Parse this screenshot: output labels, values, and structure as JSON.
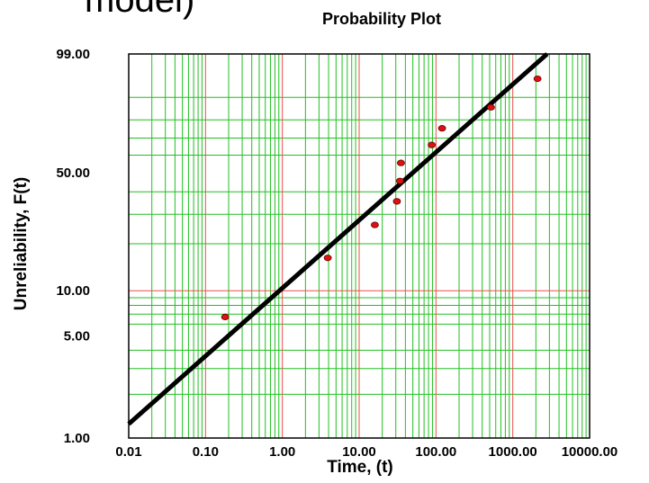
{
  "clipped_heading": "model)",
  "chart_data": {
    "type": "scatter",
    "title": "Probability Plot",
    "xlabel": "Time, (t)",
    "ylabel": "Unreliability, F(t)",
    "x_scale": "log",
    "y_scale": "weibull",
    "xlim": [
      0.01,
      10000
    ],
    "ylim": [
      1,
      99
    ],
    "grid": true,
    "x_ticks": [
      {
        "value": 0.01,
        "label": "0.01"
      },
      {
        "value": 0.1,
        "label": "0.10"
      },
      {
        "value": 1,
        "label": "1.00"
      },
      {
        "value": 10,
        "label": "10.00"
      },
      {
        "value": 100,
        "label": "100.00"
      },
      {
        "value": 1000,
        "label": "1000.00"
      },
      {
        "value": 10000,
        "label": "10000.00"
      }
    ],
    "y_ticks": [
      {
        "value": 1,
        "label": "1.00"
      },
      {
        "value": 5,
        "label": "5.00"
      },
      {
        "value": 10,
        "label": "10.00"
      },
      {
        "value": 50,
        "label": "50.00"
      },
      {
        "value": 99,
        "label": "99.00"
      }
    ],
    "y_minor": [
      2,
      3,
      4,
      6,
      7,
      8,
      9,
      20,
      30,
      40,
      60,
      70,
      80,
      90
    ],
    "points": [
      {
        "x": 0.18,
        "y": 6.7
      },
      {
        "x": 3.9,
        "y": 16.3
      },
      {
        "x": 16,
        "y": 26
      },
      {
        "x": 31,
        "y": 35.5
      },
      {
        "x": 34,
        "y": 45.5
      },
      {
        "x": 35,
        "y": 55.5
      },
      {
        "x": 88,
        "y": 66
      },
      {
        "x": 120,
        "y": 75.5
      },
      {
        "x": 520,
        "y": 86
      },
      {
        "x": 2100,
        "y": 95.5
      }
    ],
    "fit_line": [
      {
        "x": 0.01,
        "y": 1.25
      },
      {
        "x": 2800,
        "y": 99
      }
    ],
    "colors": {
      "major_grid": "#e8504a",
      "minor_grid": "#20c020",
      "point": "#dd1111",
      "line": "#000000"
    }
  }
}
